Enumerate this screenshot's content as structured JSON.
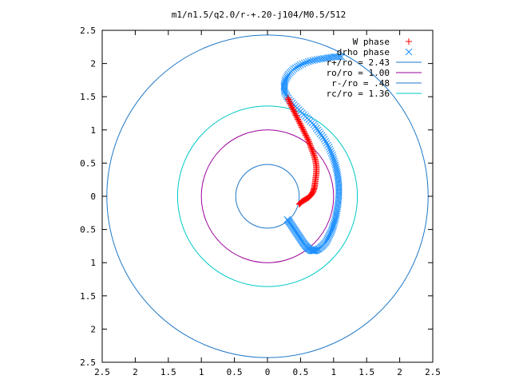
{
  "chart_data": {
    "type": "scatter",
    "title": "m1/n1.5/q2.0/r-+.20-j104/M0.5/512",
    "xlabel": "",
    "ylabel": "",
    "xlim": [
      -2.5,
      2.5
    ],
    "ylim": [
      -2.5,
      2.5
    ],
    "x_ticks": [
      {
        "value": -2.5,
        "label": "2.5"
      },
      {
        "value": -2,
        "label": "2"
      },
      {
        "value": -1.5,
        "label": "1.5"
      },
      {
        "value": -1,
        "label": "1"
      },
      {
        "value": -0.5,
        "label": "0.5"
      },
      {
        "value": 0,
        "label": "0"
      },
      {
        "value": 0.5,
        "label": "0.5"
      },
      {
        "value": 1,
        "label": "1"
      },
      {
        "value": 1.5,
        "label": "1.5"
      },
      {
        "value": 2,
        "label": "2"
      },
      {
        "value": 2.5,
        "label": "2.5"
      }
    ],
    "y_ticks": [
      {
        "value": 2.5,
        "label": "2.5"
      },
      {
        "value": 2,
        "label": "2"
      },
      {
        "value": 1.5,
        "label": "1.5"
      },
      {
        "value": 1,
        "label": "1"
      },
      {
        "value": 0.5,
        "label": "0.5"
      },
      {
        "value": 0,
        "label": "0"
      },
      {
        "value": -0.5,
        "label": "0.5"
      },
      {
        "value": -1,
        "label": "1"
      },
      {
        "value": -1.5,
        "label": "1.5"
      },
      {
        "value": -2,
        "label": "2"
      },
      {
        "value": -2.5,
        "label": "2.5"
      }
    ],
    "grid": false,
    "legend_position": "top-right",
    "series": [
      {
        "name": "W phase",
        "marker": "plus",
        "color": "#ff0000",
        "points": [
          [
            0.48,
            -0.12
          ],
          [
            0.52,
            -0.08
          ],
          [
            0.57,
            -0.05
          ],
          [
            0.62,
            -0.02
          ],
          [
            0.66,
            0.02
          ],
          [
            0.69,
            0.07
          ],
          [
            0.71,
            0.13
          ],
          [
            0.72,
            0.2
          ],
          [
            0.73,
            0.28
          ],
          [
            0.74,
            0.36
          ],
          [
            0.74,
            0.44
          ],
          [
            0.73,
            0.52
          ],
          [
            0.71,
            0.6
          ],
          [
            0.68,
            0.68
          ],
          [
            0.65,
            0.76
          ],
          [
            0.62,
            0.84
          ],
          [
            0.58,
            0.92
          ],
          [
            0.54,
            1.0
          ],
          [
            0.5,
            1.08
          ],
          [
            0.46,
            1.16
          ],
          [
            0.42,
            1.24
          ],
          [
            0.38,
            1.32
          ],
          [
            0.34,
            1.4
          ],
          [
            0.31,
            1.48
          ]
        ]
      },
      {
        "name": "drho phase",
        "marker": "cross",
        "color": "#1e90ff",
        "points": [
          [
            0.3,
            -0.35
          ],
          [
            0.34,
            -0.4
          ],
          [
            0.38,
            -0.46
          ],
          [
            0.42,
            -0.52
          ],
          [
            0.46,
            -0.58
          ],
          [
            0.5,
            -0.64
          ],
          [
            0.54,
            -0.7
          ],
          [
            0.58,
            -0.75
          ],
          [
            0.62,
            -0.79
          ],
          [
            0.67,
            -0.82
          ],
          [
            0.72,
            -0.82
          ],
          [
            0.78,
            -0.79
          ],
          [
            0.84,
            -0.74
          ],
          [
            0.89,
            -0.68
          ],
          [
            0.93,
            -0.6
          ],
          [
            0.97,
            -0.52
          ],
          [
            1.0,
            -0.43
          ],
          [
            1.03,
            -0.33
          ],
          [
            1.05,
            -0.22
          ],
          [
            1.07,
            -0.1
          ],
          [
            1.08,
            0.02
          ],
          [
            1.08,
            0.14
          ],
          [
            1.07,
            0.26
          ],
          [
            1.05,
            0.38
          ],
          [
            1.02,
            0.5
          ],
          [
            0.98,
            0.62
          ],
          [
            0.93,
            0.74
          ],
          [
            0.86,
            0.86
          ],
          [
            0.78,
            0.97
          ],
          [
            0.7,
            1.08
          ],
          [
            0.6,
            1.18
          ],
          [
            0.5,
            1.28
          ],
          [
            0.4,
            1.38
          ],
          [
            0.31,
            1.48
          ],
          [
            0.26,
            1.57
          ],
          [
            0.25,
            1.66
          ],
          [
            0.27,
            1.75
          ],
          [
            0.32,
            1.84
          ],
          [
            0.4,
            1.92
          ],
          [
            0.5,
            1.98
          ],
          [
            0.62,
            2.03
          ],
          [
            0.75,
            2.06
          ],
          [
            0.88,
            2.08
          ],
          [
            1.0,
            2.1
          ],
          [
            1.12,
            2.1
          ]
        ]
      }
    ],
    "circles": [
      {
        "name": "r+/ro = 2.43",
        "radius": 2.43,
        "color": "#1e78c8"
      },
      {
        "name": "ro/ro = 1.00",
        "radius": 1.0,
        "color": "#9b009b"
      },
      {
        "name": "r-/ro = .48",
        "radius": 0.48,
        "color": "#1e78c8"
      },
      {
        "name": "rc/ro = 1.36",
        "radius": 1.36,
        "color": "#00c8c8"
      }
    ]
  }
}
